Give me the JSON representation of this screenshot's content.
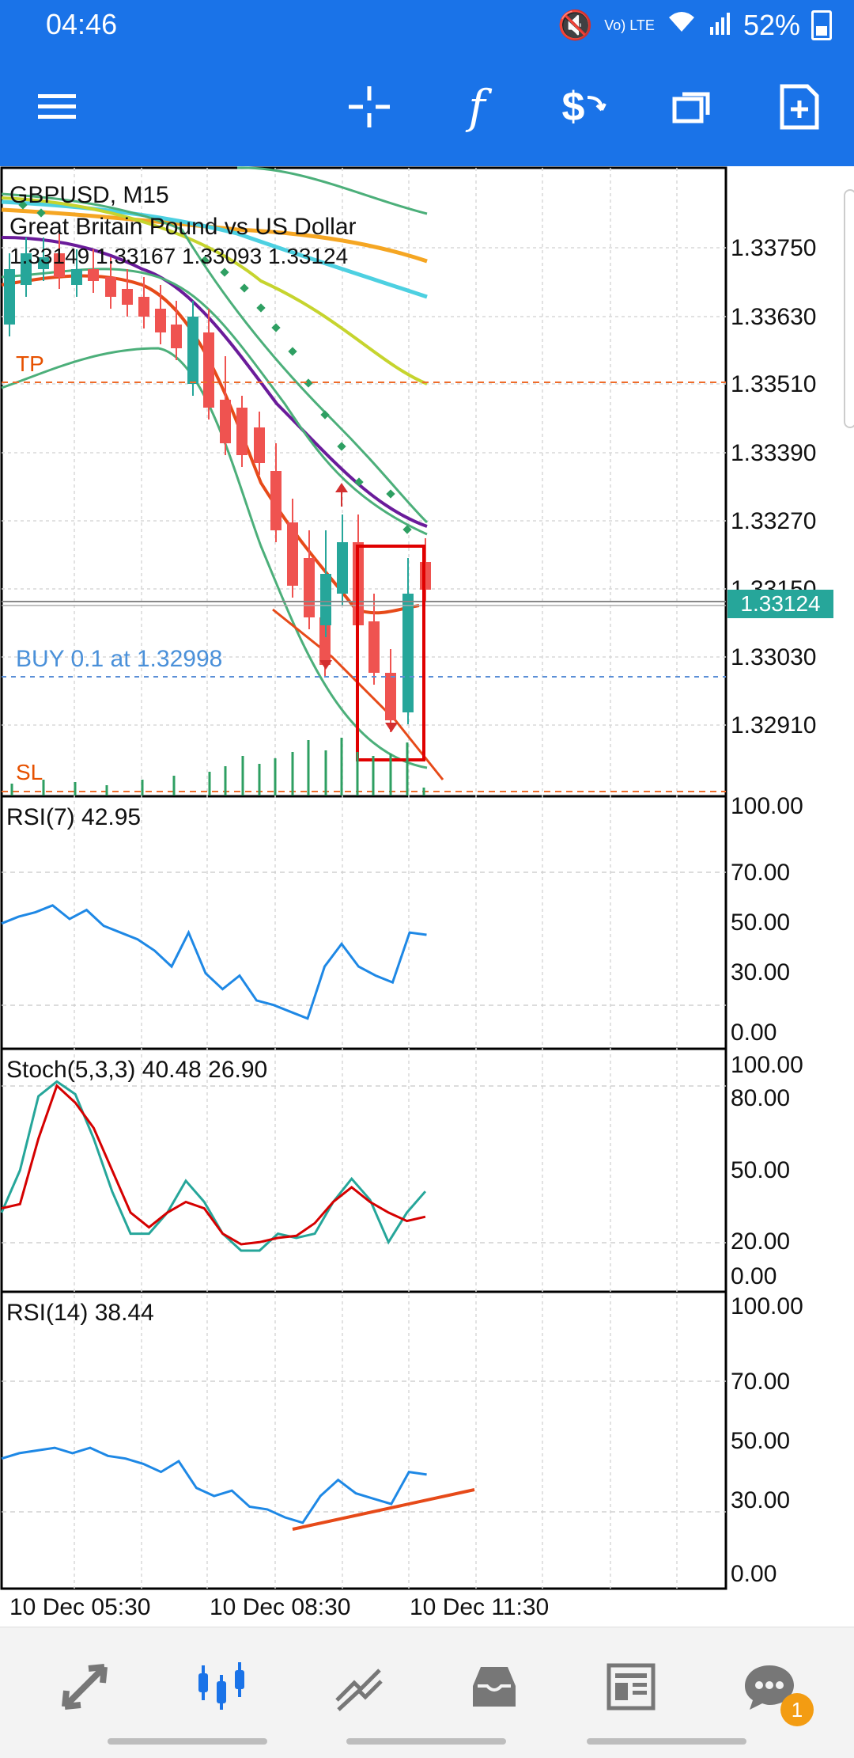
{
  "status_bar": {
    "time": "04:46",
    "network": "Vo) LTE",
    "battery": "52%"
  },
  "toolbar": {
    "icons": [
      "menu-icon",
      "crosshair-icon",
      "function-icon",
      "trade-icon",
      "windows-icon",
      "new-document-icon"
    ]
  },
  "main_chart": {
    "symbol_timeframe": "GBPUSD, M15",
    "description": "Great Britain Pound vs US Dollar",
    "ohlc": "1.33149 1.33167 1.33093 1.33124",
    "tp_label": "TP",
    "sl_label": "SL",
    "buy_label": "BUY 0.1 at 1.32998",
    "current_price": "1.33124",
    "price_ticks": [
      "1.33750",
      "1.33630",
      "1.33510",
      "1.33390",
      "1.33270",
      "1.33150",
      "1.33030",
      "1.32910"
    ]
  },
  "rsi7": {
    "label": "RSI(7) 42.95",
    "ticks": [
      "100.00",
      "70.00",
      "50.00",
      "30.00",
      "0.00"
    ],
    "values": [
      48,
      51,
      53,
      56,
      50,
      54,
      47,
      44,
      41,
      36,
      29,
      44,
      26,
      19,
      25,
      14,
      12,
      9,
      6,
      29,
      39,
      29,
      25,
      22,
      44,
      43
    ]
  },
  "stoch": {
    "label": "Stoch(5,3,3) 40.48 26.90",
    "ticks": [
      "100.00",
      "80.00",
      "50.00",
      "20.00",
      "0.00"
    ],
    "main_values": [
      30,
      50,
      85,
      92,
      86,
      65,
      40,
      20,
      20,
      30,
      45,
      35,
      20,
      12,
      12,
      20,
      18,
      20,
      35,
      46,
      36,
      16,
      30,
      40
    ],
    "signal_values": [
      32,
      34,
      65,
      90,
      82,
      70,
      50,
      30,
      23,
      30,
      35,
      32,
      20,
      15,
      16,
      18,
      19,
      25,
      35,
      42,
      35,
      30,
      26,
      28
    ]
  },
  "rsi14": {
    "label": "RSI(14) 38.44",
    "ticks": [
      "100.00",
      "70.00",
      "50.00",
      "30.00",
      "0.00"
    ],
    "values": [
      43,
      45,
      46,
      47,
      45,
      47,
      44,
      43,
      41,
      38,
      42,
      32,
      29,
      31,
      25,
      24,
      21,
      19,
      29,
      35,
      30,
      28,
      26,
      38,
      37
    ]
  },
  "time_axis": {
    "labels": [
      "10 Dec 05:30",
      "10 Dec 08:30",
      "10 Dec 11:30"
    ]
  },
  "bottom_nav": {
    "icons": [
      "quotes-icon",
      "chart-icon",
      "trade-icon",
      "history-icon",
      "news-icon",
      "messages-icon"
    ],
    "messages_badge": "1"
  },
  "colors": {
    "primary": "#1a73e8",
    "bull": "#26a69a",
    "bear": "#ef5350",
    "rsi_line": "#1e88e5"
  }
}
